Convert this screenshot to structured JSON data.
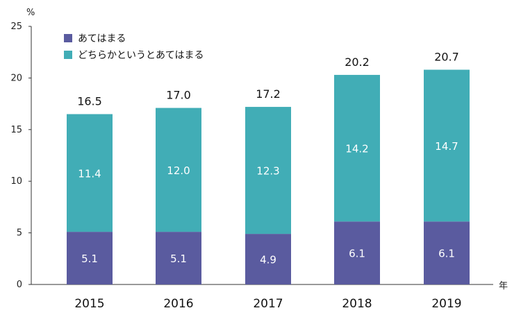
{
  "chart_data": {
    "type": "bar",
    "stacked": true,
    "categories": [
      "2015",
      "2016",
      "2017",
      "2018",
      "2019"
    ],
    "series": [
      {
        "name": "あてはまる",
        "values": [
          5.1,
          5.1,
          4.9,
          6.1,
          6.1
        ],
        "color": "#5a5b9f"
      },
      {
        "name": "どちらかというとあてはまる",
        "values": [
          11.4,
          12.0,
          12.3,
          14.2,
          14.7
        ],
        "color": "#41adb6"
      }
    ],
    "value_labels": [
      [
        "5.1",
        "5.1",
        "4.9",
        "6.1",
        "6.1"
      ],
      [
        "11.4",
        "12.0",
        "12.3",
        "14.2",
        "14.7"
      ]
    ],
    "totals": [
      "16.5",
      "17.0",
      "17.2",
      "20.2",
      "20.7"
    ],
    "yticks": [
      "0",
      "5",
      "10",
      "15",
      "20",
      "25"
    ],
    "ylim": [
      0,
      25
    ],
    "yunit": "%",
    "xunit": "年",
    "legend_position": "top-left",
    "grid": false
  }
}
